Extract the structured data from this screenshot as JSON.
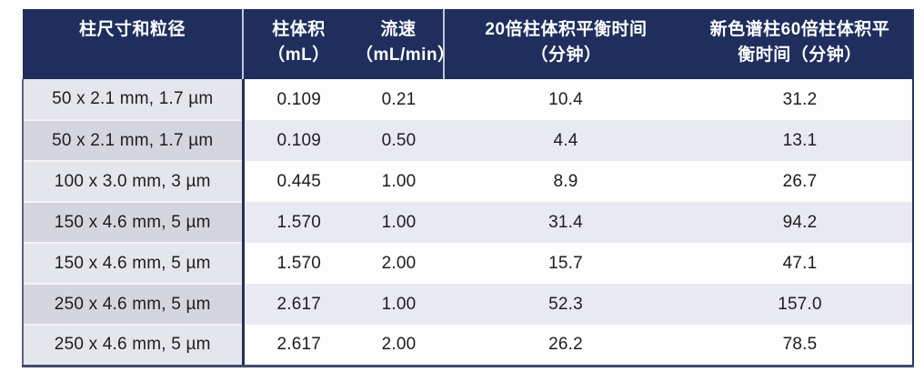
{
  "colors": {
    "header_bg": "#1f2e5d",
    "header_text": "#ffffff",
    "row_odd_bg": "#fdfdfe",
    "row_even_bg": "#e9eaf1",
    "first_col_odd_bg": "#e5e6ec",
    "first_col_even_bg": "#d4d5df",
    "border_dark_slate": "#3e4a6c",
    "border_navy": "#27355f",
    "header_separator": "#c3c8d4"
  },
  "chart_data": {
    "type": "table",
    "columns": [
      "柱尺寸和粒径",
      "柱体积（mL）",
      "流速（mL/min）",
      "20倍柱体积平衡时间（分钟）",
      "新色谱柱60倍柱体积平衡时间（分钟）"
    ],
    "rows": [
      [
        "50 x 2.1 mm, 1.7 µm",
        0.109,
        0.21,
        10.4,
        31.2
      ],
      [
        "50 x 2.1 mm, 1.7 µm",
        0.109,
        0.5,
        4.4,
        13.1
      ],
      [
        "100 x 3.0 mm, 3 µm",
        0.445,
        1.0,
        8.9,
        26.7
      ],
      [
        "150 x 4.6 mm, 5 µm",
        1.57,
        1.0,
        31.4,
        94.2
      ],
      [
        "150 x 4.6 mm, 5 µm",
        1.57,
        2.0,
        15.7,
        47.1
      ],
      [
        "250 x 4.6 mm, 5 µm",
        2.617,
        1.0,
        52.3,
        157.0
      ],
      [
        "250 x 4.6 mm, 5 µm",
        2.617,
        2.0,
        26.2,
        78.5
      ]
    ]
  },
  "table": {
    "headers": {
      "dimension": {
        "line1": "柱尺寸和粒径",
        "line2": ""
      },
      "volume": {
        "line1": "柱体积",
        "line2": "（mL）"
      },
      "flow": {
        "line1": "流速",
        "line2": "（mL/min）"
      },
      "t20": {
        "line1": "20倍柱体积平衡时间",
        "line2": "（分钟）"
      },
      "t60": {
        "line1": "新色谱柱60倍柱体积平",
        "line2": "衡时间（分钟）"
      }
    },
    "rows": [
      {
        "dimension": "50 x 2.1 mm, 1.7 µm",
        "volume": "0.109",
        "flow": "0.21",
        "t20": "10.4",
        "t60": "31.2"
      },
      {
        "dimension": "50 x 2.1 mm, 1.7 µm",
        "volume": "0.109",
        "flow": "0.50",
        "t20": "4.4",
        "t60": "13.1"
      },
      {
        "dimension": "100 x 3.0 mm, 3 µm",
        "volume": "0.445",
        "flow": "1.00",
        "t20": "8.9",
        "t60": "26.7"
      },
      {
        "dimension": "150 x 4.6 mm, 5 µm",
        "volume": "1.570",
        "flow": "1.00",
        "t20": "31.4",
        "t60": "94.2"
      },
      {
        "dimension": "150 x 4.6 mm, 5 µm",
        "volume": "1.570",
        "flow": "2.00",
        "t20": "15.7",
        "t60": "47.1"
      },
      {
        "dimension": "250 x 4.6 mm, 5 µm",
        "volume": "2.617",
        "flow": "1.00",
        "t20": "52.3",
        "t60": "157.0"
      },
      {
        "dimension": "250 x 4.6 mm, 5 µm",
        "volume": "2.617",
        "flow": "2.00",
        "t20": "26.2",
        "t60": "78.5"
      }
    ]
  }
}
